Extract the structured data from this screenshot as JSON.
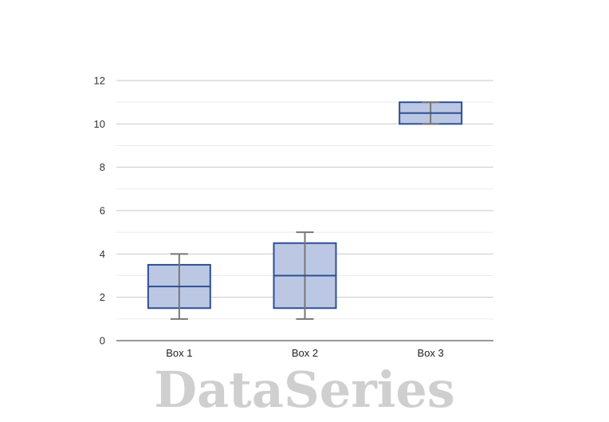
{
  "chart_data": {
    "type": "box",
    "title": "",
    "xlabel": "",
    "ylabel": "",
    "ylim": [
      0,
      12
    ],
    "yticks": [
      "0",
      "2",
      "4",
      "6",
      "8",
      "10",
      "12"
    ],
    "minor_grid": true,
    "categories": [
      "Box 1",
      "Box 2",
      "Box 3"
    ],
    "boxes": [
      {
        "name": "Box 1",
        "min": 1,
        "q1": 1.5,
        "median": 2.5,
        "q3": 3.5,
        "max": 4
      },
      {
        "name": "Box 2",
        "min": 1,
        "q1": 1.5,
        "median": 3,
        "q3": 4.5,
        "max": 5
      },
      {
        "name": "Box 3",
        "min": 10,
        "q1": 10,
        "median": 10.5,
        "q3": 11,
        "max": 11
      }
    ],
    "colors": {
      "box_fill": "#bcc8e3",
      "box_stroke": "#2d4f95",
      "whisker": "#777777",
      "grid_major": "#c8c8c8",
      "grid_minor": "#ebebeb",
      "axis": "#333333"
    }
  },
  "watermark": {
    "text": "DataSeries"
  }
}
